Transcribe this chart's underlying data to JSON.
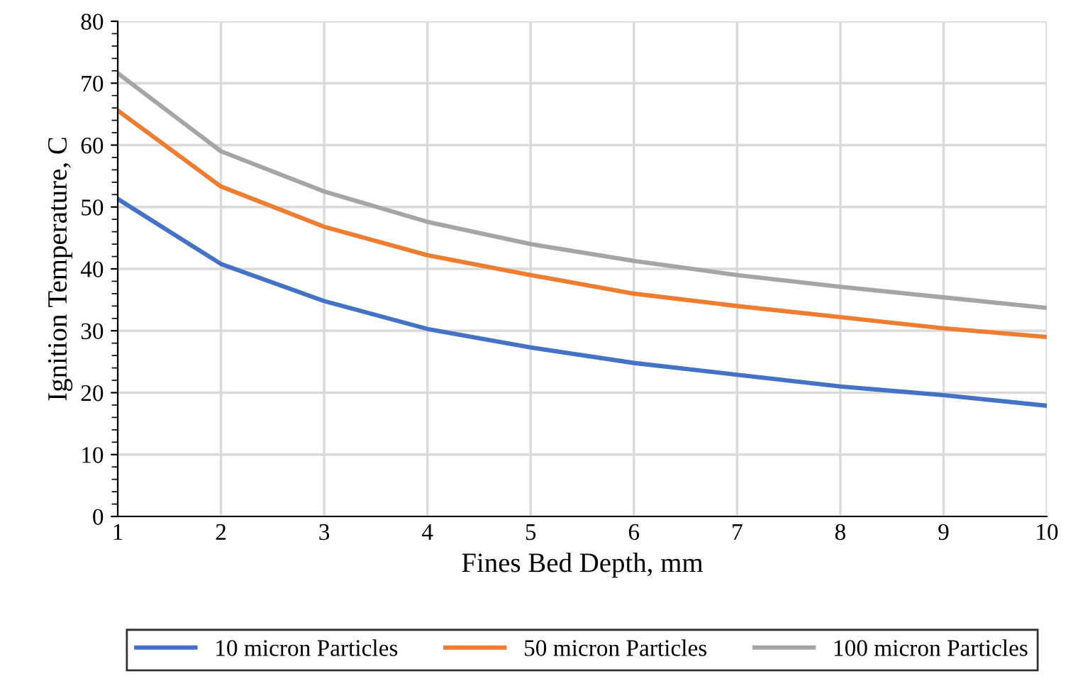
{
  "chart_data": {
    "type": "line",
    "xlabel": "Fines Bed Depth, mm",
    "ylabel": "Ignition Temperature, C",
    "x": [
      1,
      2,
      3,
      4,
      5,
      6,
      7,
      8,
      9,
      10
    ],
    "series": [
      {
        "name": "10 micron Particles",
        "color": "#4472c4",
        "values": [
          51.3,
          40.8,
          34.8,
          30.3,
          27.3,
          24.8,
          22.9,
          21.0,
          19.6,
          17.9
        ]
      },
      {
        "name": "50 micron Particles",
        "color": "#ed7d31",
        "values": [
          65.6,
          53.3,
          46.8,
          42.2,
          39.0,
          36.0,
          34.0,
          32.2,
          30.4,
          29.0
        ]
      },
      {
        "name": "100 micron Particles",
        "color": "#a5a5a5",
        "values": [
          71.6,
          59.0,
          52.5,
          47.6,
          44.0,
          41.3,
          39.0,
          37.1,
          35.4,
          33.7
        ]
      }
    ],
    "xlim": [
      1,
      10
    ],
    "xticks": [
      1,
      2,
      3,
      4,
      5,
      6,
      7,
      8,
      9,
      10
    ],
    "ylim": [
      0,
      80
    ],
    "yticks": [
      0,
      10,
      20,
      30,
      40,
      50,
      60,
      70,
      80
    ],
    "grid": true,
    "legend": "bottom",
    "marker": "none",
    "line_style": "solid"
  }
}
